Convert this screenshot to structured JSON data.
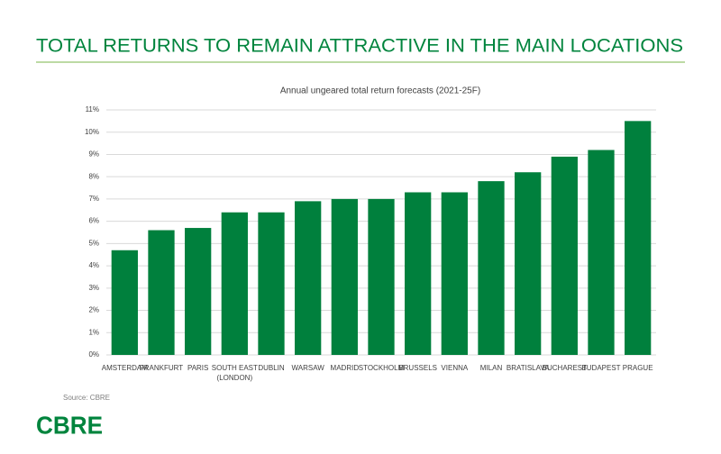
{
  "header": {
    "title": "TOTAL RETURNS TO REMAIN ATTRACTIVE IN THE MAIN LOCATIONS"
  },
  "chart_data": {
    "type": "bar",
    "title": "Annual ungeared total return forecasts (2021-25F)",
    "categories": [
      "AMSTERDAM",
      "FRANKFURT",
      "PARIS",
      "SOUTH EAST (LONDON)",
      "DUBLIN",
      "WARSAW",
      "MADRID",
      "STOCKHOLM",
      "BRUSSELS",
      "VIENNA",
      "MILAN",
      "BRATISLAVA",
      "BUCHAREST",
      "BUDAPEST",
      "PRAGUE"
    ],
    "values": [
      4.7,
      5.6,
      5.7,
      6.4,
      6.4,
      6.9,
      7.0,
      7.0,
      7.3,
      7.3,
      7.8,
      8.2,
      8.9,
      9.2,
      10.5
    ],
    "color": "#00803d",
    "ylim": [
      0,
      11
    ],
    "yticks": [
      {
        "value": 0,
        "label": "0%"
      },
      {
        "value": 1,
        "label": "1%"
      },
      {
        "value": 2,
        "label": "2%"
      },
      {
        "value": 3,
        "label": "3%"
      },
      {
        "value": 4,
        "label": "4%"
      },
      {
        "value": 5,
        "label": "5%"
      },
      {
        "value": 6,
        "label": "6%"
      },
      {
        "value": 7,
        "label": "7%"
      },
      {
        "value": 8,
        "label": "8%"
      },
      {
        "value": 9,
        "label": "9%"
      },
      {
        "value": 10,
        "label": "10%"
      },
      {
        "value": 11,
        "label": "11%"
      }
    ],
    "grid": true
  },
  "footer": {
    "source": "Source: CBRE",
    "logo": "CBRE"
  }
}
